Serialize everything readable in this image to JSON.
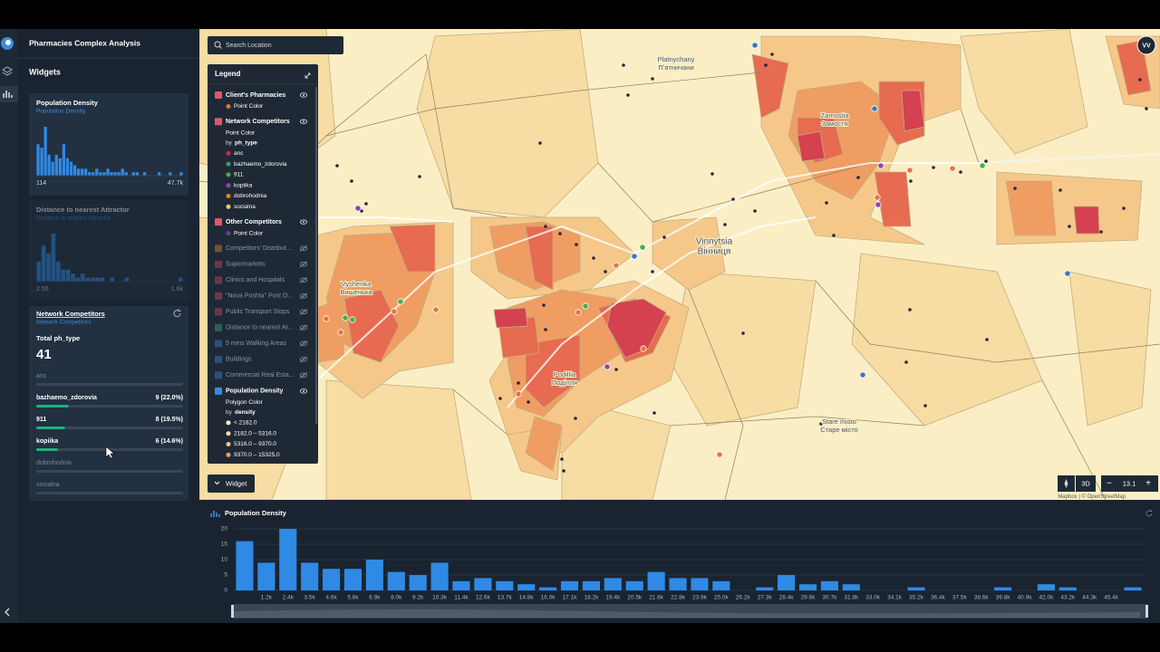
{
  "app": {
    "title": "Pharmacies Complex Analysis",
    "widgets_title": "Widgets",
    "avatar": "VV"
  },
  "widgets": [
    {
      "title": "Population Density",
      "subtitle": "Population Density",
      "min_label": "114",
      "max_label": "47.7k",
      "values": [
        9,
        8,
        14,
        6,
        4,
        6,
        5,
        9,
        5,
        4,
        3,
        2,
        2,
        2,
        1,
        1,
        2,
        1,
        1,
        2,
        1,
        1,
        1,
        2,
        1,
        0,
        1,
        1,
        0,
        1,
        0,
        0,
        0,
        1,
        0,
        0,
        1,
        0,
        0,
        1
      ],
      "active": true
    },
    {
      "title": "Distance to nearest Attractor",
      "subtitle": "Distance to nearest Attractor",
      "min_label": "2.55",
      "max_label": "1.6k",
      "values": [
        5,
        9,
        7,
        12,
        5,
        3,
        3,
        2,
        1,
        2,
        1,
        1,
        1,
        1,
        0,
        1,
        0,
        0,
        1,
        0,
        0,
        0,
        0,
        0,
        0,
        0,
        0,
        0,
        0,
        1
      ],
      "active": false
    }
  ],
  "network": {
    "title": "Network Competitors",
    "subtitle": "Network Competitors",
    "total_label": "Total ph_type",
    "total": 41,
    "rows": [
      {
        "name": "anc"
      },
      {
        "name": "bazhaemo_zdorovia",
        "value": 9,
        "label": "9 (22.0%)"
      },
      {
        "name": "911",
        "value": 8,
        "label": "8 (19.5%)"
      },
      {
        "name": "kopiika",
        "value": 6,
        "label": "6 (14.6%)"
      },
      {
        "name": "dobrohodnia"
      },
      {
        "name": "socialna"
      }
    ]
  },
  "map": {
    "search_placeholder": "Search Location",
    "widget_button": "Widget",
    "mode_button": "3D",
    "zoom_out": "−",
    "zoom": "13.1",
    "zoom_in": "+",
    "attribution": "Mapbox | © OpenStreetMap",
    "places": [
      {
        "latin": "Platnychany",
        "local": "Пʼятничани"
      },
      {
        "latin": "Zamostia",
        "local": "Замостя"
      },
      {
        "latin": "Vinnytsia",
        "local": "Вінниця"
      },
      {
        "latin": "Vyshenka",
        "local": "Вишенька"
      },
      {
        "latin": "Podillia",
        "local": "Поділля"
      },
      {
        "latin": "Stare misto",
        "local": "Старе місто"
      }
    ]
  },
  "legend": {
    "title": "Legend",
    "layers": [
      {
        "name": "Client's Pharmacies",
        "enabled": true,
        "icon_color": "#e0566a",
        "items": [
          {
            "label": "Point Color",
            "color": "#e8743b"
          }
        ]
      },
      {
        "name": "Network Competitors",
        "enabled": true,
        "icon_color": "#e0566a",
        "style": "Point Color",
        "by": "by",
        "field": "ph_type",
        "items": [
          {
            "label": "anc",
            "color": "#d7263d"
          },
          {
            "label": "bazhaemo_zdorovia",
            "color": "#2f9e6a"
          },
          {
            "label": "911",
            "color": "#43b047"
          },
          {
            "label": "kopiika",
            "color": "#8e44ad"
          },
          {
            "label": "dobrohodnia",
            "color": "#f07d1a"
          },
          {
            "label": "socialna",
            "color": "#f4d03f"
          }
        ]
      },
      {
        "name": "Other Competitors",
        "enabled": true,
        "icon_color": "#e0566a",
        "items": [
          {
            "label": "Point Color",
            "color": "#6a3d9a"
          }
        ]
      },
      {
        "name": "Competitors' Distribut...",
        "enabled": false,
        "icon_color": "#c97a2f"
      },
      {
        "name": "Supermarkets",
        "enabled": false,
        "icon_color": "#c0445a"
      },
      {
        "name": "Clinics and Hospitals",
        "enabled": false,
        "icon_color": "#c0445a"
      },
      {
        "name": "\"Nova Poshta\" Post O...",
        "enabled": false,
        "icon_color": "#c0445a"
      },
      {
        "name": "Public Transport Stops",
        "enabled": false,
        "icon_color": "#c0445a"
      },
      {
        "name": "Distance to nearest At...",
        "enabled": false,
        "icon_color": "#2f9e6a"
      },
      {
        "name": "5 mins Walking Areas",
        "enabled": false,
        "icon_color": "#3a78c2"
      },
      {
        "name": "Buildings",
        "enabled": false,
        "icon_color": "#3a78c2"
      },
      {
        "name": "Commercial Real Esta...",
        "enabled": false,
        "icon_color": "#3a78c2"
      },
      {
        "name": "Population Density",
        "enabled": true,
        "icon_color": "#3a8be0",
        "style": "Polygon Color",
        "by": "by",
        "field": "density",
        "items": [
          {
            "label": "< 2182.0",
            "color": "#fbf2c8"
          },
          {
            "label": "2182.0 – 5316.0",
            "color": "#f8e0a4"
          },
          {
            "label": "5316.0 – 9370.0",
            "color": "#f5c88a"
          },
          {
            "label": "9370.0 – 15325.0",
            "color": "#ef9d62"
          }
        ]
      }
    ]
  },
  "chart_data": {
    "type": "bar",
    "title": "Population Density",
    "color": "#2f8ae5",
    "categories": [
      null,
      "1.2k",
      "2.4k",
      "3.5k",
      "4.6k",
      "5.8k",
      "6.9k",
      "8.0k",
      "9.2k",
      "10.3k",
      "11.4k",
      "12.6k",
      "13.7k",
      "14.8k",
      "16.0k",
      "17.1k",
      "18.2k",
      "19.4k",
      "20.5k",
      "21.6k",
      "22.8k",
      "23.9k",
      "25.0k",
      "26.2k",
      "27.3k",
      "28.4k",
      "29.6k",
      "30.7k",
      "31.8k",
      "33.0k",
      "34.1k",
      "35.2k",
      "36.4k",
      "37.5k",
      "38.6k",
      "39.8k",
      "40.9k",
      "42.0k",
      "43.2k",
      "44.3k",
      "45.4k",
      null
    ],
    "values": [
      16,
      9,
      20,
      9,
      7,
      7,
      10,
      6,
      5,
      9,
      3,
      4,
      3,
      2,
      1,
      3,
      3,
      4,
      3,
      6,
      4,
      4,
      3,
      0,
      1,
      5,
      2,
      3,
      2,
      0,
      0,
      1,
      0,
      0,
      0,
      1,
      0,
      2,
      1,
      0,
      0,
      1
    ],
    "ylim": [
      0,
      20
    ],
    "yticks": [
      0,
      5,
      10,
      15,
      20
    ],
    "grid": true
  }
}
